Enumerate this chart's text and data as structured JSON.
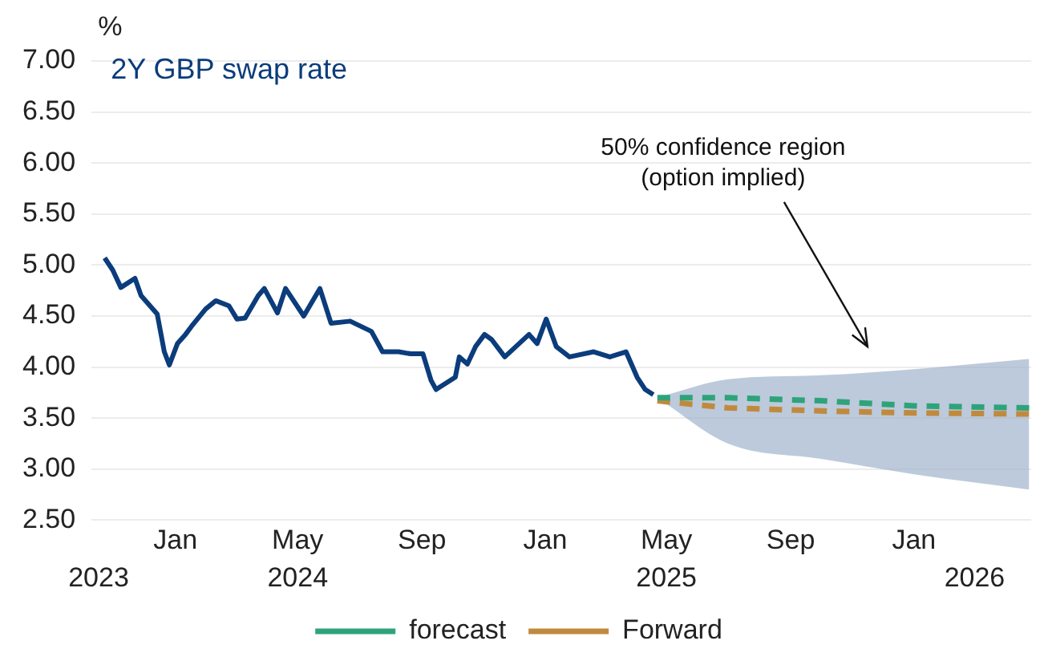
{
  "chart_data": {
    "type": "line",
    "title": "2Y GBP swap rate",
    "ylabel": "%",
    "annotations": [
      "50% confidence region\n(option implied)"
    ],
    "xlim": [
      "2023-10-10",
      "2026-04-27"
    ],
    "xticks": [
      {
        "value": "2024-01-01",
        "label": "Jan"
      },
      {
        "value": "2024-05-01",
        "label": "May"
      },
      {
        "value": "2024-09-01",
        "label": "Sep"
      },
      {
        "value": "2025-01-01",
        "label": "Jan"
      },
      {
        "value": "2025-05-01",
        "label": "May"
      },
      {
        "value": "2025-09-01",
        "label": "Sep"
      },
      {
        "value": "2026-01-01",
        "label": "Jan"
      }
    ],
    "x2lim": [
      "2023-10-10",
      "2026-04-27"
    ],
    "x2ticks": [
      {
        "value": "2023-10-17",
        "label": "2023"
      },
      {
        "value": "2024-05-01",
        "label": "2024"
      },
      {
        "value": "2025-05-01",
        "label": "2025"
      },
      {
        "value": "2026-03-02",
        "label": "2026"
      }
    ],
    "ylim": [
      2.5,
      7
    ],
    "yticks": [
      {
        "value": 2.5,
        "label": "2.50"
      },
      {
        "value": 3,
        "label": "3.00"
      },
      {
        "value": 3.5,
        "label": "3.50"
      },
      {
        "value": 4,
        "label": "4.00"
      },
      {
        "value": 4.5,
        "label": "4.50"
      },
      {
        "value": 5,
        "label": "5.00"
      },
      {
        "value": 5.5,
        "label": "5.50"
      },
      {
        "value": 6,
        "label": "6.00"
      },
      {
        "value": 6.5,
        "label": "6.50"
      },
      {
        "value": 7,
        "label": "7.00"
      }
    ],
    "grid": "y",
    "legend": "bottom",
    "marker": "none",
    "series": [
      {
        "color": "#0b3c7c",
        "line_style": "solid",
        "x": [
          "2023-10-23",
          "2023-10-31",
          "2023-11-08",
          "2023-11-22",
          "2023-11-28",
          "2023-12-14",
          "2023-12-21",
          "2023-12-26",
          "2024-01-03",
          "2024-01-11",
          "2024-01-17",
          "2024-01-31",
          "2024-02-10",
          "2024-02-23",
          "2024-03-02",
          "2024-03-10",
          "2024-03-23",
          "2024-03-29",
          "2024-04-11",
          "2024-04-19",
          "2024-05-07",
          "2024-05-23",
          "2024-06-03",
          "2024-06-22",
          "2024-07-13",
          "2024-07-24",
          "2024-08-01",
          "2024-08-09",
          "2024-08-21",
          "2024-09-02",
          "2024-09-10",
          "2024-09-15",
          "2024-10-04",
          "2024-10-08",
          "2024-10-16",
          "2024-10-24",
          "2024-11-02",
          "2024-11-09",
          "2024-11-22",
          "2024-12-16",
          "2024-12-24",
          "2025-01-02",
          "2025-01-12",
          "2025-01-25",
          "2025-02-18",
          "2025-03-06",
          "2025-03-22",
          "2025-04-02",
          "2025-04-10",
          "2025-04-18"
        ],
        "values": [
          5.07,
          4.95,
          4.78,
          4.87,
          4.7,
          4.52,
          4.15,
          4.02,
          4.23,
          4.32,
          4.4,
          4.57,
          4.65,
          4.6,
          4.47,
          4.48,
          4.7,
          4.77,
          4.53,
          4.77,
          4.5,
          4.77,
          4.43,
          4.45,
          4.35,
          4.15,
          4.15,
          4.15,
          4.13,
          4.13,
          3.87,
          3.78,
          3.9,
          4.1,
          4.03,
          4.2,
          4.32,
          4.27,
          4.1,
          4.32,
          4.23,
          4.47,
          4.2,
          4.1,
          4.15,
          4.1,
          4.15,
          3.9,
          3.78,
          3.73
        ]
      },
      {
        "name": "forecast",
        "color": "#2ea37a",
        "line_style": "dashed",
        "x": [
          "2025-04-22",
          "2025-07-01",
          "2025-10-01",
          "2026-01-01",
          "2026-04-25"
        ],
        "values": [
          3.7,
          3.7,
          3.67,
          3.62,
          3.6
        ],
        "lower": [
          3.7,
          3.25,
          3.1,
          2.95,
          2.8
        ],
        "upper": [
          3.7,
          3.88,
          3.92,
          3.98,
          4.08
        ]
      },
      {
        "name": "Forward",
        "color": "#c08a3e",
        "line_style": "dashed",
        "x": [
          "2025-04-22",
          "2025-07-01",
          "2025-10-01",
          "2026-01-01",
          "2026-04-25"
        ],
        "values": [
          3.67,
          3.6,
          3.57,
          3.55,
          3.54
        ]
      }
    ]
  }
}
